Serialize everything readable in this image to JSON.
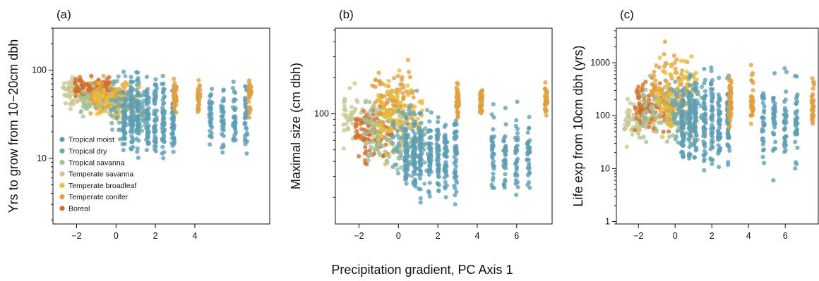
{
  "figure": {
    "shared_xlabel": "Precipitation gradient, PC Axis 1"
  },
  "colors": {
    "Tropical moist": "#5e9db5",
    "Tropical dry": "#6fa8ae",
    "Tropical savanna": "#9fbf9a",
    "Temperate savanna": "#c8c995",
    "Temperate broadleaf": "#e7bd3f",
    "Temperate conifer": "#e09f3e",
    "Boreal": "#d26e2c"
  },
  "legend": {
    "placement": "left-middle of panel (a)",
    "entries": [
      "Tropical moist",
      "Tropical dry",
      "Tropical savanna",
      "Temperate savanna",
      "Temperate broadleaf",
      "Temperate conifer",
      "Boreal"
    ]
  },
  "chart_data": [
    {
      "type": "scatter",
      "panel_label": "(a)",
      "ylabel": "Yrs to grow from 10−20cm dbh",
      "xlabel": "",
      "x_ticks": [
        -2,
        0,
        2,
        4
      ],
      "x_tick_labels": [
        "−2",
        "0",
        "2",
        "4"
      ],
      "xlim": [
        -3.2,
        7.8
      ],
      "y_scale": "log",
      "ylim": [
        1.8,
        300
      ],
      "y_ticks": [
        10,
        100
      ],
      "y_tick_labels": [
        "10",
        "100"
      ],
      "legend": true,
      "series": [
        {
          "name": "Temperate savanna",
          "x_range": [
            -2.7,
            -1.2
          ],
          "y_range": [
            20,
            90
          ],
          "y_center": 55
        },
        {
          "name": "Boreal",
          "x_range": [
            -2.1,
            -0.3
          ],
          "y_range": [
            35,
            95
          ],
          "y_center": 65
        },
        {
          "name": "Tropical savanna",
          "x_range": [
            -1.8,
            0.5
          ],
          "y_range": [
            20,
            90
          ],
          "y_center": 45
        },
        {
          "name": "Temperate conifer",
          "x_range": [
            -1.3,
            0.6
          ],
          "y_range": [
            20,
            110
          ],
          "y_center": 50
        },
        {
          "name": "Temperate broadleaf",
          "x_range": [
            -1.1,
            1.2
          ],
          "y_range": [
            15,
            95
          ],
          "y_center": 45
        },
        {
          "name": "Tropical dry",
          "x_range": [
            -0.3,
            1.5
          ],
          "y_range": [
            5,
            100
          ],
          "y_center": 35
        },
        {
          "name": "Tropical moist",
          "columns": [
            0.4,
            0.8,
            1.1,
            1.6,
            2.0,
            2.4,
            2.9,
            4.8,
            5.4,
            6.0,
            6.6
          ],
          "y_range": [
            2.5,
            120
          ],
          "y_center": 30
        },
        {
          "name": "Temperate conifer",
          "columns": [
            3.0,
            4.2,
            6.8
          ],
          "y_range": [
            18,
            100
          ],
          "y_center": 50
        }
      ]
    },
    {
      "type": "scatter",
      "panel_label": "(b)",
      "ylabel": "Maximal size (cm dbh)",
      "xlabel": "",
      "x_ticks": [
        -2,
        0,
        2,
        4,
        6
      ],
      "x_tick_labels": [
        "−2",
        "0",
        "2",
        "4",
        "6"
      ],
      "xlim": [
        -3.2,
        7.8
      ],
      "y_scale": "log",
      "ylim": [
        12,
        520
      ],
      "y_ticks": [
        100
      ],
      "y_tick_labels": [
        "100"
      ],
      "legend": false,
      "series": [
        {
          "name": "Temperate savanna",
          "x_range": [
            -2.8,
            -0.8
          ],
          "y_range": [
            35,
            250
          ],
          "y_center": 90
        },
        {
          "name": "Boreal",
          "x_range": [
            -2.2,
            -0.2
          ],
          "y_range": [
            30,
            230
          ],
          "y_center": 70
        },
        {
          "name": "Tropical savanna",
          "x_range": [
            -1.8,
            0.5
          ],
          "y_range": [
            20,
            250
          ],
          "y_center": 70
        },
        {
          "name": "Temperate conifer",
          "x_range": [
            -1.3,
            0.8
          ],
          "y_range": [
            25,
            450
          ],
          "y_center": 120
        },
        {
          "name": "Temperate broadleaf",
          "x_range": [
            -1.1,
            1.2
          ],
          "y_range": [
            20,
            320
          ],
          "y_center": 90
        },
        {
          "name": "Tropical dry",
          "x_range": [
            -0.3,
            1.5
          ],
          "y_range": [
            18,
            300
          ],
          "y_center": 60
        },
        {
          "name": "Tropical moist",
          "columns": [
            0.4,
            0.8,
            1.1,
            1.6,
            2.0,
            2.4,
            2.9,
            4.8,
            5.4,
            6.0,
            6.6
          ],
          "y_range": [
            15,
            300
          ],
          "y_center": 45
        },
        {
          "name": "Temperate conifer",
          "columns": [
            3.0,
            4.2,
            7.5
          ],
          "y_range": [
            70,
            250
          ],
          "y_center": 130
        }
      ]
    },
    {
      "type": "scatter",
      "panel_label": "(c)",
      "ylabel": "Life exp from 10cm dbh (yrs)",
      "xlabel": "",
      "x_ticks": [
        -2,
        0,
        2,
        4,
        6
      ],
      "x_tick_labels": [
        "−2",
        "0",
        "2",
        "4",
        "6"
      ],
      "xlim": [
        -3.2,
        7.8
      ],
      "y_scale": "log",
      "ylim": [
        0.9,
        4500
      ],
      "y_ticks": [
        1,
        10,
        100,
        1000
      ],
      "y_tick_labels": [
        "1",
        "10",
        "100",
        "1000"
      ],
      "legend": false,
      "series": [
        {
          "name": "Temperate savanna",
          "x_range": [
            -2.8,
            -1.0
          ],
          "y_range": [
            10,
            600
          ],
          "y_center": 80
        },
        {
          "name": "Boreal",
          "x_range": [
            -2.2,
            -0.2
          ],
          "y_range": [
            15,
            1000
          ],
          "y_center": 150
        },
        {
          "name": "Tropical savanna",
          "x_range": [
            -1.8,
            0.5
          ],
          "y_range": [
            8,
            1500
          ],
          "y_center": 120
        },
        {
          "name": "Temperate conifer",
          "x_range": [
            -1.3,
            0.8
          ],
          "y_range": [
            8,
            3000
          ],
          "y_center": 300
        },
        {
          "name": "Temperate broadleaf",
          "x_range": [
            -1.1,
            1.2
          ],
          "y_range": [
            3,
            2500
          ],
          "y_center": 250
        },
        {
          "name": "Tropical dry",
          "x_range": [
            -0.3,
            1.5
          ],
          "y_range": [
            5,
            1500
          ],
          "y_center": 120
        },
        {
          "name": "Tropical moist",
          "columns": [
            0.4,
            0.8,
            1.1,
            1.6,
            2.0,
            2.4,
            2.9,
            4.8,
            5.4,
            6.0,
            6.6
          ],
          "y_range": [
            1.2,
            3000
          ],
          "y_center": 80
        },
        {
          "name": "Temperate conifer",
          "columns": [
            3.0,
            4.2,
            7.5
          ],
          "y_range": [
            20,
            1500
          ],
          "y_center": 200
        }
      ]
    }
  ]
}
